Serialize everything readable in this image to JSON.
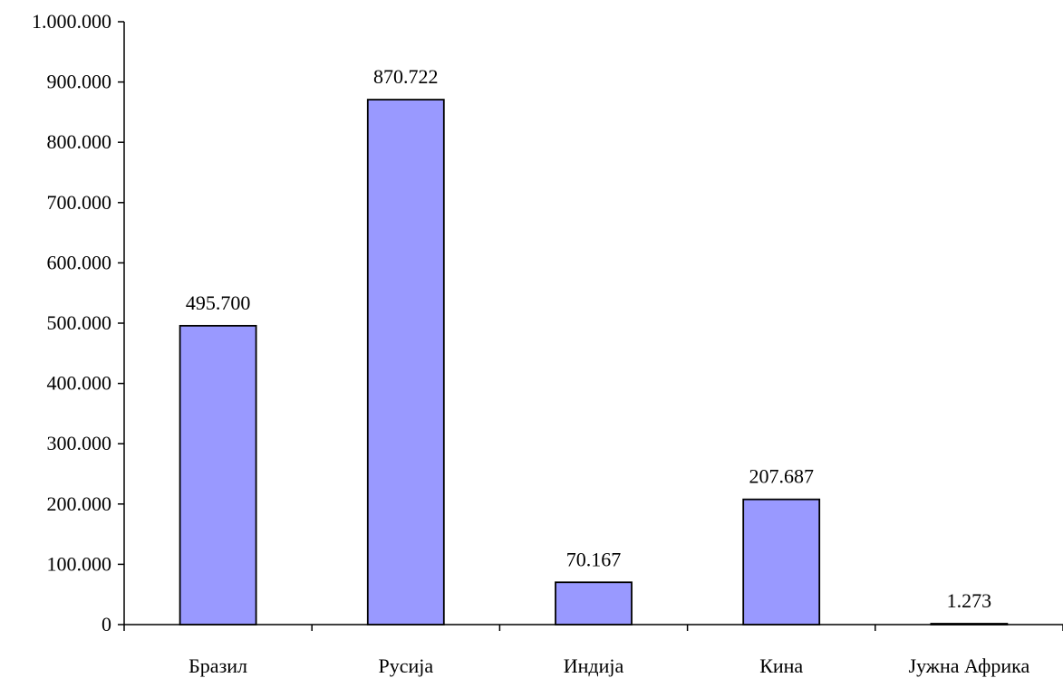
{
  "chart_data": {
    "type": "bar",
    "categories": [
      "Бразил",
      "Русија",
      "Индија",
      "Кина",
      "Јужна Африка"
    ],
    "values": [
      495700,
      870722,
      70167,
      207687,
      1273
    ],
    "value_labels": [
      "495.700",
      "870.722",
      "70.167",
      "207.687",
      "1.273"
    ],
    "ylim": [
      0,
      1000000
    ],
    "y_ticks": [
      0,
      100000,
      200000,
      300000,
      400000,
      500000,
      600000,
      700000,
      800000,
      900000,
      1000000
    ],
    "y_tick_labels": [
      "0",
      "100.000",
      "200.000",
      "300.000",
      "400.000",
      "500.000",
      "600.000",
      "700.000",
      "800.000",
      "900.000",
      "1.000.000"
    ],
    "grid": false,
    "legend": "none",
    "bar_color": "#9999ff",
    "bar_stroke": "#000000",
    "axis_color": "#000000"
  }
}
